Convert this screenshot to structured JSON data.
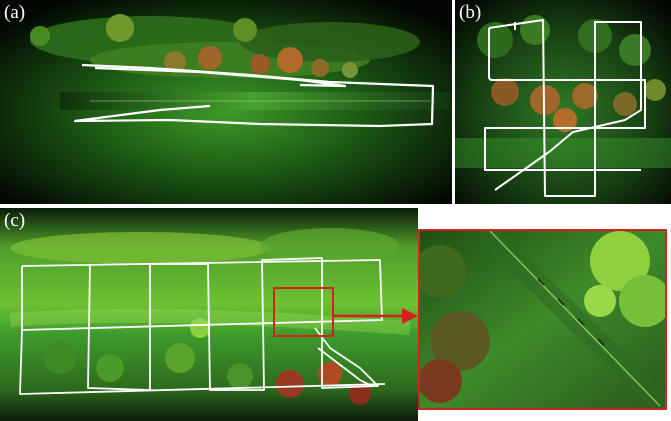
{
  "figure": {
    "panels": [
      {
        "id": "a",
        "label": "(a)"
      },
      {
        "id": "b",
        "label": "(b)"
      },
      {
        "id": "c",
        "label": "(c)"
      }
    ],
    "colors": {
      "background": "#050805",
      "canopy_dark": "#0b2a0c",
      "canopy_mid": "#2f7a1c",
      "canopy_light": "#8fd13a",
      "autumn_tree": "#a85a22",
      "flight_path": "#ffffff",
      "zoom_frame": "#d42020"
    }
  }
}
